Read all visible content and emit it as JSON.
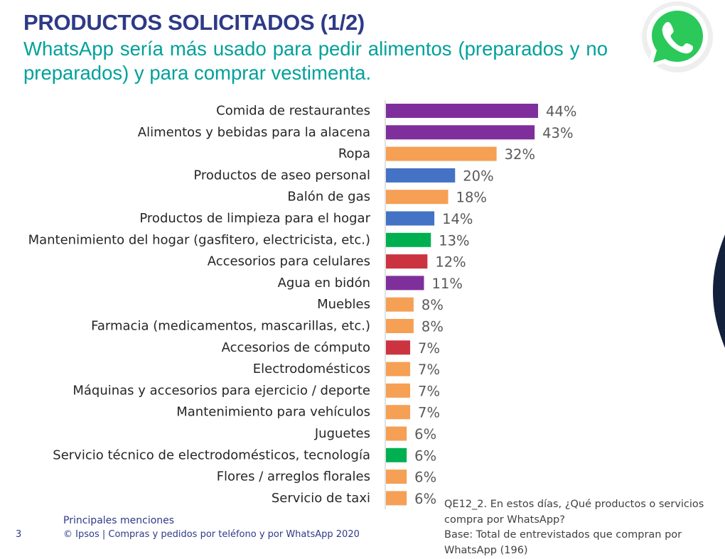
{
  "header": {
    "title": "PRODUCTOS SOLICITADOS (1/2)",
    "subtitle": "WhatsApp sería más usado para pedir alimentos (preparados y no preparados) y para comprar vestimenta."
  },
  "logo": {
    "icon": "whatsapp-logo-icon",
    "color": "#25D366"
  },
  "colors": {
    "purple": "#7f2f9b",
    "orange": "#f5a055",
    "blue": "#4472c4",
    "green": "#00b050",
    "red": "#cc3340"
  },
  "chart_data": {
    "type": "bar",
    "orientation": "horizontal",
    "categories": [
      "Comida de restaurantes",
      "Alimentos y bebidas para la alacena",
      "Ropa",
      "Productos de aseo personal",
      "Balón de gas",
      "Productos de limpieza para el hogar",
      "Mantenimiento del hogar (gasfitero, electricista, etc.)",
      "Accesorios para celulares",
      "Agua en bidón",
      "Muebles",
      "Farmacia (medicamentos, mascarillas, etc.)",
      "Accesorios de cómputo",
      "Electrodomésticos",
      "Máquinas y accesorios para ejercicio / deporte",
      "Mantenimiento para vehículos",
      "Juguetes",
      "Servicio técnico de electrodomésticos, tecnología",
      "Flores / arreglos florales",
      "Servicio de taxi"
    ],
    "values": [
      44,
      43,
      32,
      20,
      18,
      14,
      13,
      12,
      11,
      8,
      8,
      7,
      7,
      7,
      7,
      6,
      6,
      6,
      6
    ],
    "value_labels": [
      "44%",
      "43%",
      "32%",
      "20%",
      "18%",
      "14%",
      "13%",
      "12%",
      "11%",
      "8%",
      "8%",
      "7%",
      "7%",
      "7%",
      "7%",
      "6%",
      "6%",
      "6%",
      "6%"
    ],
    "bar_colors": [
      "#7f2f9b",
      "#7f2f9b",
      "#f5a055",
      "#4472c4",
      "#f5a055",
      "#4472c4",
      "#00b050",
      "#cc3340",
      "#7f2f9b",
      "#f5a055",
      "#f5a055",
      "#cc3340",
      "#f5a055",
      "#f5a055",
      "#f5a055",
      "#f5a055",
      "#00b050",
      "#f5a055",
      "#f5a055"
    ],
    "unit": "%",
    "xlim": [
      0,
      44
    ],
    "grid": false,
    "legend": "none"
  },
  "footnote": {
    "line1": "QE12_2. En estos días, ¿Qué productos o servicios",
    "line2": "compra por WhatsApp?",
    "line3": "Base: Total de entrevistados que compran por",
    "line4": "WhatsApp (196)"
  },
  "footer": {
    "mentions": "Principales menciones",
    "copyright": "© Ipsos | Compras y pedidos por teléfono y por WhatsApp 2020",
    "page_number": "3"
  }
}
